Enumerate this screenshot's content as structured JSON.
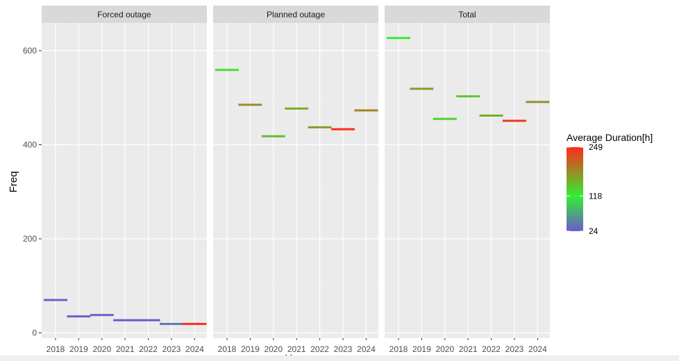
{
  "chart_data": {
    "type": "bar",
    "xlabel": "Year",
    "ylabel": "Freq",
    "ylim": [
      0,
      650
    ],
    "yticks": [
      0,
      200,
      400,
      600
    ],
    "categories": [
      "2018",
      "2019",
      "2020",
      "2021",
      "2022",
      "2023",
      "2024"
    ],
    "facets": [
      {
        "name": "Forced outage",
        "values": [
          70,
          35,
          38,
          27,
          27,
          19,
          19
        ],
        "avg_duration": [
          30,
          28,
          28,
          26,
          26,
          40,
          249
        ]
      },
      {
        "name": "Planned outage",
        "values": [
          559,
          485,
          418,
          477,
          437,
          433,
          473
        ],
        "avg_duration": [
          130,
          185,
          150,
          160,
          175,
          249,
          190
        ]
      },
      {
        "name": "Total",
        "values": [
          627,
          519,
          455,
          503,
          462,
          451,
          491
        ],
        "avg_duration": [
          120,
          175,
          135,
          145,
          160,
          240,
          180
        ]
      }
    ],
    "legend": {
      "title": "Average Duration[h]",
      "position": "right",
      "min": 24,
      "max": 249,
      "breaks": [
        249,
        118,
        24
      ],
      "colors": [
        "#6a5acd",
        "#33ee33",
        "#ff2a1a"
      ]
    },
    "grid": true,
    "panel_background": "#ebebeb",
    "strip_background": "#d9d9d9"
  }
}
